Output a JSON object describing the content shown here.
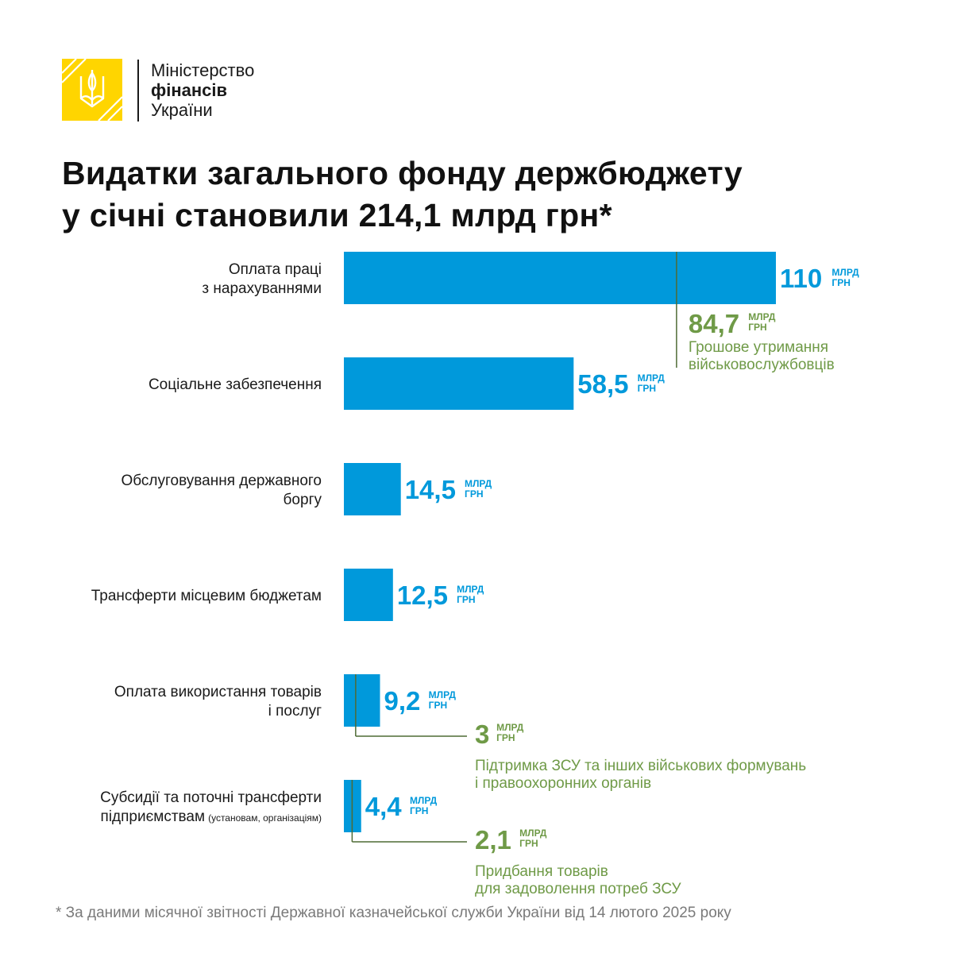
{
  "org": {
    "name_line1": "Міністерство",
    "name_line2": "фінансів",
    "name_line3": "України",
    "logo_icon": "trident-icon",
    "logo_color": "#FFD500"
  },
  "title": {
    "line1": "Видатки загального фонду держбюджету",
    "line2": "у січні становили 214,1 млрд грн*"
  },
  "footnote": "* За даними місячної звітності Державної казначейської служби України від 14 лютого 2025 року",
  "chart_data": {
    "type": "bar",
    "orientation": "horizontal",
    "unit": "млрд грн",
    "unit_line1": "МЛРД",
    "unit_line2": "ГРН",
    "bar_color": "#0099DB",
    "sub_color": "#6F9A47",
    "categories": [
      [
        "Оплата праці",
        "з нарахуваннями"
      ],
      [
        "Соціальне забезпечення"
      ],
      [
        "Обслуговування державного",
        "боргу"
      ],
      [
        "Трансферти місцевим бюджетам"
      ],
      [
        "Оплата використання товарів",
        "і послуг"
      ],
      [
        "Субсидії та поточні трансферти",
        "підприємствам"
      ]
    ],
    "category_note_6": "(установам, організаціям)",
    "values": [
      110,
      58.5,
      14.5,
      12.5,
      9.2,
      4.4
    ],
    "value_labels": [
      "110",
      "58,5",
      "14,5",
      "12,5",
      "9,2",
      "4,4"
    ],
    "sub_values": [
      {
        "bar": 0,
        "value": 84.7,
        "label": "84,7",
        "text": [
          "Грошове утримання",
          "військовослужбовців"
        ]
      },
      {
        "bar": 4,
        "value": 3,
        "label": "3",
        "text": [
          "Підтримка ЗСУ та інших військових формувань",
          "і правоохоронних органів"
        ]
      },
      {
        "bar": 5,
        "value": 2.1,
        "label": "2,1",
        "text": [
          "Придбання товарів",
          "для задоволення потреб ЗСУ"
        ]
      }
    ]
  }
}
